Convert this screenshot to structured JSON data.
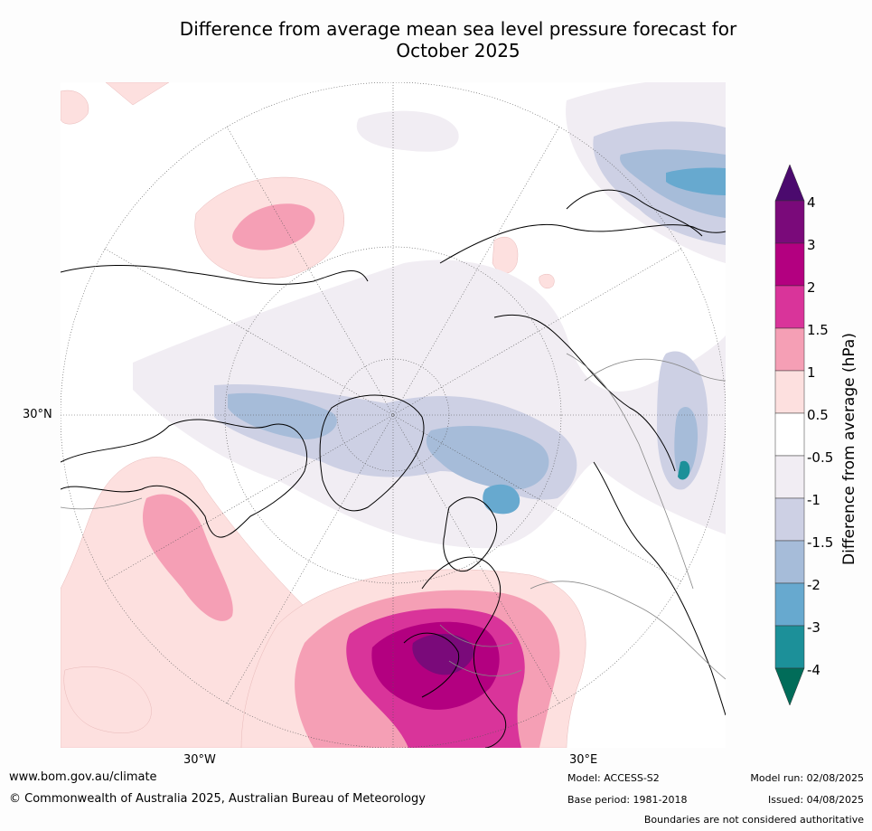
{
  "title_line1": "Difference from average mean sea level pressure forecast for",
  "title_line2": "October 2025",
  "map": {
    "lat_label": "30°N",
    "lon_labels": {
      "west": "30°W",
      "east": "30°E"
    }
  },
  "colorbar": {
    "label": "Difference from average (hPa)",
    "ticks": [
      "4",
      "3",
      "2",
      "1.5",
      "1",
      "0.5",
      "-0.5",
      "-1",
      "-1.5",
      "-2",
      "-3",
      "-4"
    ],
    "colors": {
      "gt4": "#4b0a6e",
      "3_4": "#7a0a7a",
      "2_3": "#b30080",
      "1.5_2": "#d9349a",
      "1_1.5": "#f59fb5",
      "0.5_1": "#fde0df",
      "neutral": "#ffffff",
      "m1_m0.5": "#f1edf3",
      "m1.5_m1": "#cdd0e4",
      "m2_m1.5": "#a6bcd9",
      "m3_m2": "#67a9cf",
      "m4_m3": "#1c9099",
      "lt_m4": "#016c59"
    }
  },
  "footer": {
    "website": "www.bom.gov.au/climate",
    "copyright": "© Commonwealth of Australia 2025, Australian Bureau of Meteorology",
    "model": "Model: ACCESS-S2",
    "base_period": "Base period: 1981-2018",
    "model_run": "Model run: 02/08/2025",
    "issued": "Issued: 04/08/2025",
    "boundaries": "Boundaries are not considered authoritative"
  }
}
